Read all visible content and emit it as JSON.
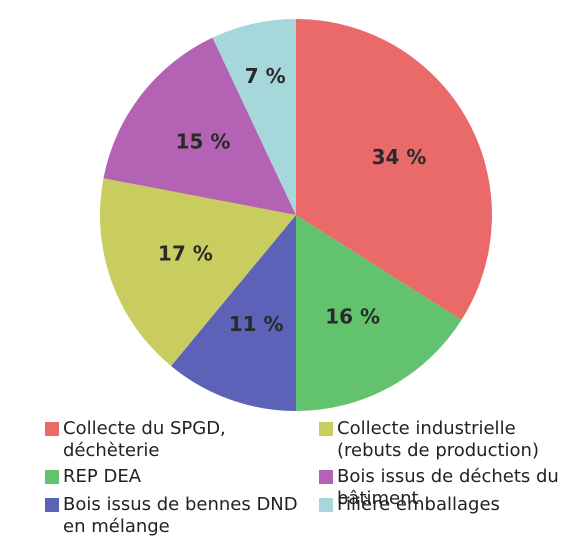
{
  "chart_data": {
    "type": "pie",
    "categories": [
      "Collecte du SPGD, déchèterie",
      "REP DEA",
      "Bois issus de bennes DND en mélange",
      "Collecte industrielle (rebuts de production)",
      "Bois issus de déchets du bâtiment",
      "Filière emballages"
    ],
    "values": [
      34,
      16,
      11,
      17,
      15,
      7
    ],
    "value_labels": [
      "34 %",
      "16 %",
      "11 %",
      "17 %",
      "15 %",
      "7 %"
    ],
    "colors": [
      "#ea6a6a",
      "#62c26e",
      "#5c62b8",
      "#c9cc5e",
      "#b463b4",
      "#a6d7da"
    ]
  }
}
